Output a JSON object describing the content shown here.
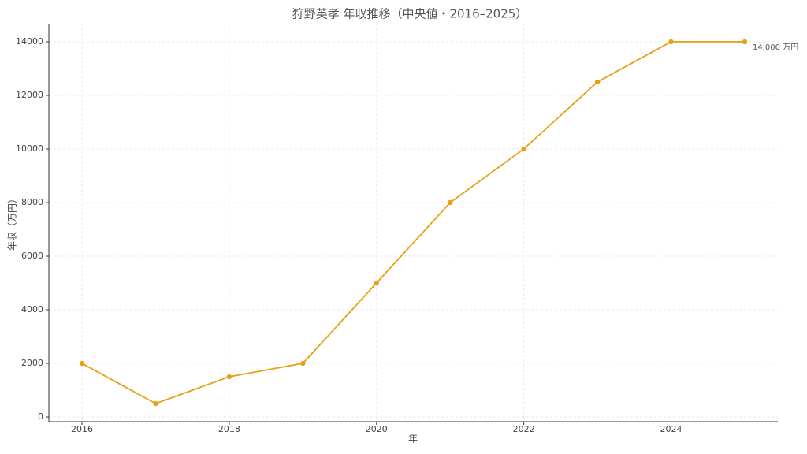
{
  "chart_data": {
    "type": "line",
    "title": "狩野英孝 年収推移（中央値・2016–2025）",
    "x_label": "年",
    "y_label": "年収（万円）",
    "x": [
      2016,
      2017,
      2018,
      2019,
      2020,
      2021,
      2022,
      2023,
      2024,
      2025
    ],
    "series": [
      {
        "name": "年収",
        "color": "#e6a117",
        "values": [
          2000,
          500,
          1500,
          2000,
          5000,
          8000,
          10000,
          12500,
          14000,
          14000
        ],
        "value_labels": [
          null,
          null,
          null,
          null,
          null,
          null,
          null,
          null,
          null,
          "14,000 万円"
        ]
      }
    ],
    "xlim": [
      2015.55,
      2025.45
    ],
    "xticks": [
      2016,
      2018,
      2020,
      2022,
      2024
    ],
    "ylim": [
      -175,
      14675
    ],
    "yticks": [
      0,
      2000,
      4000,
      6000,
      8000,
      10000,
      12000,
      14000
    ],
    "grid": true,
    "legend": false
  }
}
